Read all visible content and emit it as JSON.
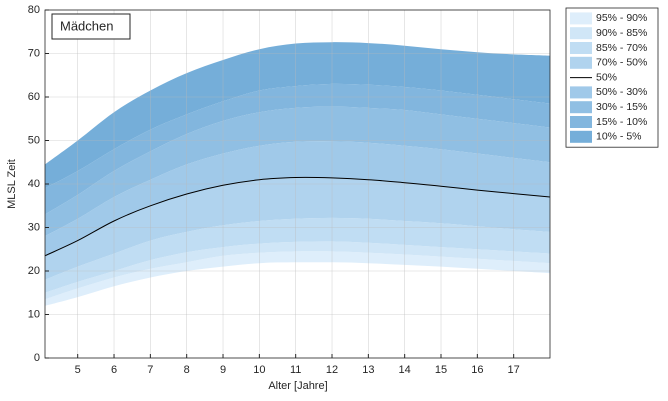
{
  "chart_data": {
    "type": "percentile-bands",
    "title": "Mädchen",
    "xlabel": "Alter [Jahre]",
    "ylabel": "MLSL Zeit",
    "xlim": [
      4.1,
      18
    ],
    "ylim": [
      0,
      80
    ],
    "xticks": [
      5,
      6,
      7,
      8,
      9,
      10,
      11,
      12,
      13,
      14,
      15,
      16,
      17
    ],
    "yticks": [
      0,
      10,
      20,
      30,
      40,
      50,
      60,
      70,
      80
    ],
    "grid": true,
    "legend": "outside-right",
    "x": [
      4.1,
      5,
      6,
      7,
      8,
      9,
      10,
      11,
      12,
      13,
      14,
      15,
      16,
      17,
      18
    ],
    "lower_bound": [
      12,
      14,
      16.5,
      18.5,
      20,
      21,
      21.8,
      22,
      22,
      21.8,
      21.4,
      21,
      20.5,
      20,
      19.5
    ],
    "series": [
      {
        "name": "95% - 90%",
        "color": "#deeefb",
        "values": [
          13.5,
          16,
          18.5,
          20.5,
          22,
          23.5,
          24.2,
          24.5,
          24.5,
          24.2,
          23.8,
          23.3,
          22.8,
          22.3,
          21.8
        ]
      },
      {
        "name": "90% - 85%",
        "color": "#d0e6f7",
        "values": [
          15,
          17.5,
          20,
          22.5,
          24.3,
          25.5,
          26.3,
          26.7,
          26.8,
          26.5,
          26,
          25.5,
          25,
          24.5,
          24
        ]
      },
      {
        "name": "85% - 70%",
        "color": "#c0ddf3",
        "values": [
          18,
          21,
          24,
          27,
          29,
          30.5,
          31.5,
          32,
          32.2,
          32,
          31.5,
          31,
          30.3,
          29.6,
          29
        ]
      },
      {
        "name": "70% - 50%",
        "color": "#b0d3ee",
        "values": [
          23.5,
          27,
          31.5,
          35,
          37.7,
          39.7,
          41,
          41.5,
          41.4,
          41,
          40.3,
          39.5,
          38.6,
          37.8,
          37
        ]
      },
      {
        "name": "50%",
        "color": "#000000",
        "kind": "line"
      },
      {
        "name": "50% - 30%",
        "color": "#a0c9e9",
        "values": [
          28,
          32,
          37,
          41,
          44.5,
          47,
          48.8,
          49.7,
          49.8,
          49.5,
          48.8,
          48,
          47,
          46,
          45
        ]
      },
      {
        "name": "30% - 15%",
        "color": "#90bfe3",
        "values": [
          33,
          37.5,
          43,
          47.5,
          51.5,
          54.5,
          56.5,
          57.5,
          57.8,
          57.5,
          57,
          56,
          55,
          54,
          53
        ]
      },
      {
        "name": "15% - 10%",
        "color": "#82b6de",
        "values": [
          39,
          43,
          48,
          52.5,
          56,
          59,
          61.5,
          62.5,
          63,
          62.8,
          62.3,
          61.5,
          60.5,
          59.5,
          58.5
        ]
      },
      {
        "name": "10% - 5%",
        "color": "#75aed9",
        "values": [
          44.5,
          50,
          56.5,
          61.5,
          65.5,
          68.5,
          71,
          72.3,
          72.6,
          72.4,
          71.8,
          71,
          70.3,
          69.8,
          69.5
        ]
      }
    ]
  }
}
